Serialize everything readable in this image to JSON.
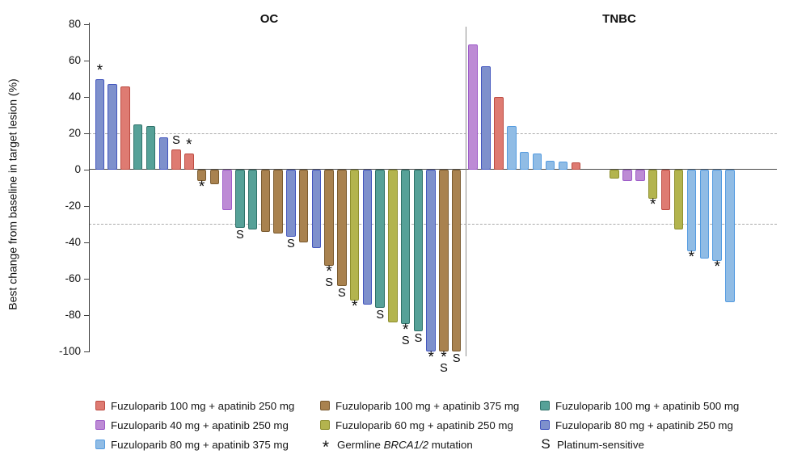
{
  "chart_data": {
    "type": "bar",
    "ylabel": "Best change from baseline in target lesion (%)",
    "ylim": [
      -100,
      80
    ],
    "yticks": [
      80,
      60,
      40,
      20,
      0,
      -20,
      -40,
      -60,
      -80,
      -100
    ],
    "reference_lines": [
      20,
      -30
    ],
    "grid": false,
    "legend_position": "bottom",
    "marker_meanings": {
      "*": "Germline BRCA1/2 mutation",
      "S": "Platinum-sensitive"
    },
    "colors": {
      "red": {
        "fill": "#DE7B72",
        "border": "#BC4A40",
        "label": "Fuzuloparib 100 mg + apatinib 250 mg"
      },
      "brown": {
        "fill": "#A9824F",
        "border": "#7A5A2F",
        "label": "Fuzuloparib 100 mg + apatinib 375 mg"
      },
      "teal": {
        "fill": "#56A198",
        "border": "#2F7169",
        "label": "Fuzuloparib 100 mg + apatinib 500 mg"
      },
      "purple": {
        "fill": "#BD8BD5",
        "border": "#9D5BC8",
        "label": "Fuzuloparib 40 mg + apatinib 250 mg"
      },
      "yellow": {
        "fill": "#B3B44E",
        "border": "#8E8F2F",
        "label": "Fuzuloparib 60 mg + apatinib 250 mg"
      },
      "blue": {
        "fill": "#7E90CC",
        "border": "#4356BE",
        "label": "Fuzuloparib 80 mg + apatinib 250 mg"
      },
      "lightblue": {
        "fill": "#90BCE5",
        "border": "#549BE0",
        "label": "Fuzuloparib 80 mg + apatinib 375 mg"
      }
    },
    "groups": [
      {
        "name": "OC",
        "bars": [
          {
            "v": 50,
            "c": "blue",
            "m": "*"
          },
          {
            "v": 47,
            "c": "blue"
          },
          {
            "v": 46,
            "c": "red"
          },
          {
            "v": 25,
            "c": "teal"
          },
          {
            "v": 24,
            "c": "teal"
          },
          {
            "v": 18,
            "c": "blue"
          },
          {
            "v": 11,
            "c": "red",
            "m": "S"
          },
          {
            "v": 9,
            "c": "red",
            "m": "*"
          },
          {
            "v": -6,
            "c": "brown",
            "m": "*"
          },
          {
            "v": -8,
            "c": "brown"
          },
          {
            "v": -22,
            "c": "purple"
          },
          {
            "v": -32,
            "c": "teal",
            "m": "S"
          },
          {
            "v": -33,
            "c": "teal"
          },
          {
            "v": -34,
            "c": "brown"
          },
          {
            "v": -35,
            "c": "brown"
          },
          {
            "v": -37,
            "c": "blue",
            "m": "S"
          },
          {
            "v": -40,
            "c": "brown"
          },
          {
            "v": -43,
            "c": "blue"
          },
          {
            "v": -53,
            "c": "brown",
            "m": "*S"
          },
          {
            "v": -64,
            "c": "brown",
            "m": "S"
          },
          {
            "v": -72,
            "c": "yellow",
            "m": "*"
          },
          {
            "v": -74,
            "c": "blue"
          },
          {
            "v": -76,
            "c": "teal",
            "m": "S"
          },
          {
            "v": -84,
            "c": "yellow"
          },
          {
            "v": -85,
            "c": "teal",
            "m": "*S"
          },
          {
            "v": -89,
            "c": "teal",
            "m": "S"
          },
          {
            "v": -100,
            "c": "blue",
            "m": "*"
          },
          {
            "v": -100,
            "c": "brown",
            "m": "*S"
          },
          {
            "v": -100,
            "c": "brown",
            "m": "S"
          }
        ]
      },
      {
        "name": "TNBC",
        "bars": [
          {
            "v": 69,
            "c": "purple"
          },
          {
            "v": 57,
            "c": "blue"
          },
          {
            "v": 40,
            "c": "red"
          },
          {
            "v": 24,
            "c": "lightblue"
          },
          {
            "v": 10,
            "c": "lightblue"
          },
          {
            "v": 9,
            "c": "lightblue"
          },
          {
            "v": 5,
            "c": "lightblue"
          },
          {
            "v": 4.5,
            "c": "lightblue"
          },
          {
            "v": 4,
            "c": "red"
          },
          {
            "v": 0
          },
          {
            "v": 0
          },
          {
            "v": -5,
            "c": "yellow"
          },
          {
            "v": -6,
            "c": "purple"
          },
          {
            "v": -6,
            "c": "purple"
          },
          {
            "v": -16,
            "c": "yellow",
            "m": "*"
          },
          {
            "v": -22,
            "c": "red"
          },
          {
            "v": -33,
            "c": "yellow"
          },
          {
            "v": -45,
            "c": "lightblue",
            "m": "*"
          },
          {
            "v": -49,
            "c": "lightblue"
          },
          {
            "v": -50,
            "c": "lightblue",
            "m": "*"
          },
          {
            "v": -73,
            "c": "lightblue"
          }
        ]
      }
    ]
  },
  "legend": {
    "items": [
      {
        "swatch": "red",
        "parts": [
          {
            "t": "Fuzuloparib 100 mg + apatinib 250 mg"
          }
        ]
      },
      {
        "swatch": "brown",
        "parts": [
          {
            "t": "Fuzuloparib 100 mg + apatinib 375 mg"
          }
        ]
      },
      {
        "swatch": "teal",
        "parts": [
          {
            "t": "Fuzuloparib 100 mg + apatinib 500 mg"
          }
        ]
      },
      {
        "swatch": "purple",
        "parts": [
          {
            "t": "Fuzuloparib 40 mg + apatinib 250 mg"
          }
        ]
      },
      {
        "swatch": "yellow",
        "parts": [
          {
            "t": "Fuzuloparib 60 mg + apatinib 250 mg"
          }
        ]
      },
      {
        "swatch": "blue",
        "parts": [
          {
            "t": "Fuzuloparib 80 mg + apatinib 250 mg"
          }
        ]
      },
      {
        "swatch": "lightblue",
        "parts": [
          {
            "t": "Fuzuloparib 80 mg + apatinib 375 mg"
          }
        ]
      },
      {
        "symbol": "*",
        "parts": [
          {
            "t": "Germline "
          },
          {
            "t": "BRCA1/2",
            "i": true
          },
          {
            "t": " mutation"
          }
        ]
      },
      {
        "symbol": "S",
        "parts": [
          {
            "t": "Platinum-sensitive"
          }
        ]
      }
    ]
  }
}
